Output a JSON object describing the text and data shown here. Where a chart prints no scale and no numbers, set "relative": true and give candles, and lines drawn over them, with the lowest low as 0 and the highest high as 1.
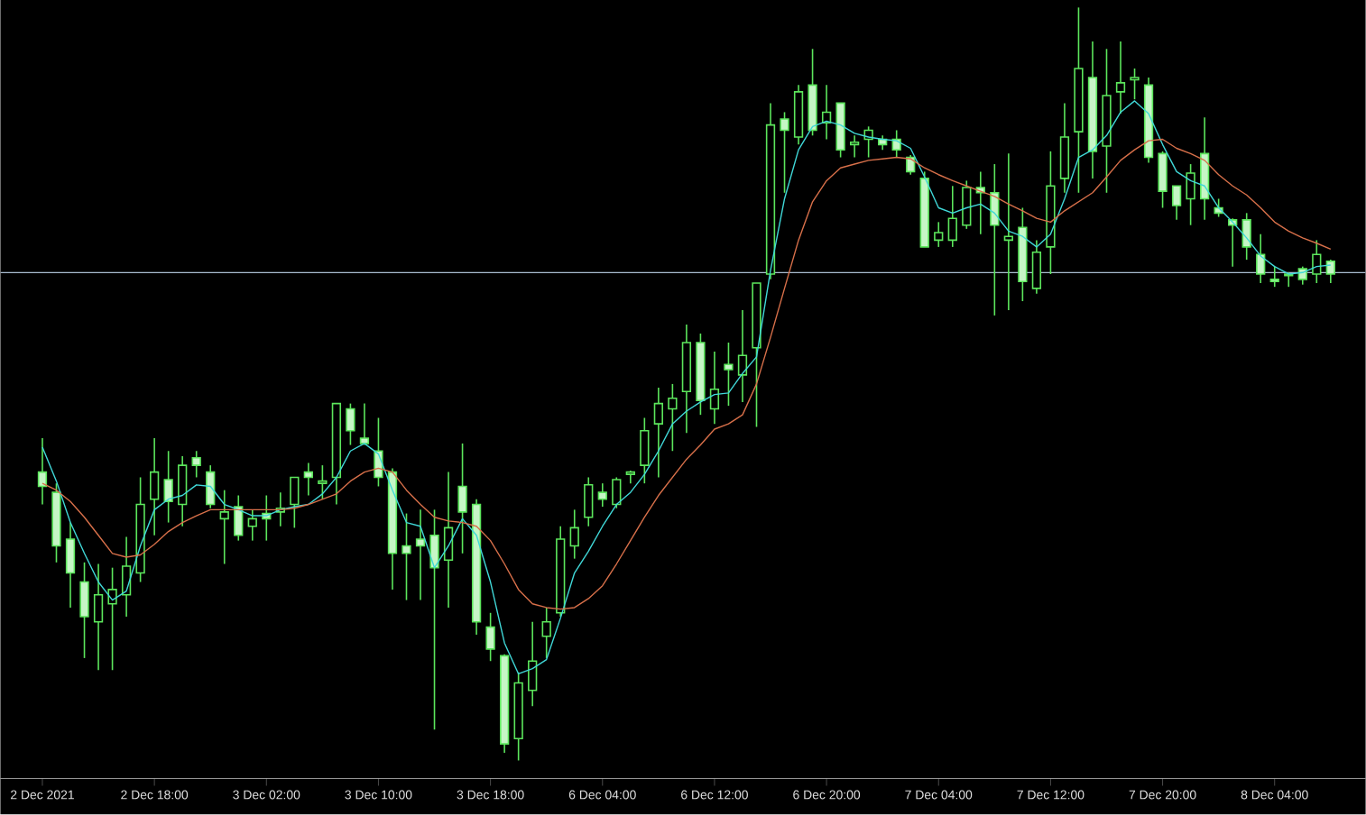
{
  "chart_data": {
    "type": "candlestick",
    "relative": true,
    "color": "#5ce65c",
    "categories": [
      "2 Dec 2021",
      null,
      null,
      null,
      null,
      null,
      null,
      null,
      "2 Dec 18:00",
      null,
      null,
      null,
      null,
      null,
      null,
      null,
      "3 Dec 02:00",
      null,
      null,
      null,
      null,
      null,
      null,
      null,
      "3 Dec 10:00",
      null,
      null,
      null,
      null,
      null,
      null,
      null,
      "3 Dec 18:00",
      null,
      null,
      null,
      null,
      null,
      null,
      null,
      "6 Dec 04:00",
      null,
      null,
      null,
      null,
      null,
      null,
      null,
      "6 Dec 12:00",
      null,
      null,
      null,
      null,
      null,
      null,
      null,
      "6 Dec 20:00",
      null,
      null,
      null,
      null,
      null,
      null,
      null,
      "7 Dec 04:00",
      null,
      null,
      null,
      null,
      null,
      null,
      null,
      "7 Dec 12:00",
      null,
      null,
      null,
      null,
      null,
      null,
      null,
      "7 Dec 20:00",
      null,
      null,
      null,
      null,
      null,
      null,
      null,
      "8 Dec 04:00",
      null,
      null,
      null,
      null
    ],
    "ohlc": [
      [
        0.383,
        0.428,
        0.34,
        0.364
      ],
      [
        0.356,
        0.368,
        0.263,
        0.285
      ],
      [
        0.294,
        0.316,
        0.203,
        0.249
      ],
      [
        0.237,
        0.263,
        0.136,
        0.191
      ],
      [
        0.184,
        0.261,
        0.12,
        0.22
      ],
      [
        0.208,
        0.256,
        0.12,
        0.227
      ],
      [
        0.22,
        0.297,
        0.191,
        0.258
      ],
      [
        0.249,
        0.376,
        0.237,
        0.34
      ],
      [
        0.347,
        0.428,
        0.299,
        0.383
      ],
      [
        0.373,
        0.411,
        0.316,
        0.344
      ],
      [
        0.34,
        0.404,
        0.311,
        0.392
      ],
      [
        0.402,
        0.411,
        0.376,
        0.392
      ],
      [
        0.383,
        0.392,
        0.335,
        0.34
      ],
      [
        0.321,
        0.359,
        0.261,
        0.33
      ],
      [
        0.337,
        0.352,
        0.292,
        0.299
      ],
      [
        0.311,
        0.333,
        0.292,
        0.321
      ],
      [
        0.328,
        0.352,
        0.292,
        0.321
      ],
      [
        0.33,
        0.356,
        0.311,
        0.335
      ],
      [
        0.34,
        0.376,
        0.309,
        0.376
      ],
      [
        0.383,
        0.395,
        0.352,
        0.376
      ],
      [
        0.368,
        0.392,
        0.347,
        0.371
      ],
      [
        0.376,
        0.474,
        0.34,
        0.474
      ],
      [
        0.467,
        0.474,
        0.419,
        0.438
      ],
      [
        0.428,
        0.474,
        0.419,
        0.421
      ],
      [
        0.411,
        0.455,
        0.364,
        0.376
      ],
      [
        0.383,
        0.388,
        0.227,
        0.275
      ],
      [
        0.285,
        0.328,
        0.213,
        0.275
      ],
      [
        0.294,
        0.333,
        0.213,
        0.285
      ],
      [
        0.299,
        0.333,
        0.041,
        0.256
      ],
      [
        0.266,
        0.383,
        0.203,
        0.309
      ],
      [
        0.364,
        0.421,
        0.275,
        0.33
      ],
      [
        0.34,
        0.347,
        0.167,
        0.184
      ],
      [
        0.177,
        0.196,
        0.132,
        0.148
      ],
      [
        0.139,
        0.141,
        0.01,
        0.022
      ],
      [
        0.029,
        0.117,
        0,
        0.103
      ],
      [
        0.093,
        0.184,
        0.072,
        0.132
      ],
      [
        0.165,
        0.203,
        0.136,
        0.184
      ],
      [
        0.196,
        0.311,
        0.191,
        0.294
      ],
      [
        0.285,
        0.333,
        0.268,
        0.309
      ],
      [
        0.323,
        0.376,
        0.311,
        0.366
      ],
      [
        0.356,
        0.368,
        0.337,
        0.347
      ],
      [
        0.34,
        0.376,
        0.335,
        0.373
      ],
      [
        0.38,
        0.385,
        0.368,
        0.383
      ],
      [
        0.392,
        0.455,
        0.368,
        0.438
      ],
      [
        0.447,
        0.495,
        0.376,
        0.474
      ],
      [
        0.467,
        0.5,
        0.411,
        0.481
      ],
      [
        0.49,
        0.579,
        0.435,
        0.555
      ],
      [
        0.555,
        0.567,
        0.459,
        0.478
      ],
      [
        0.467,
        0.543,
        0.447,
        0.493
      ],
      [
        0.526,
        0.555,
        0.471,
        0.519
      ],
      [
        0.512,
        0.598,
        0.476,
        0.538
      ],
      [
        0.548,
        0.634,
        0.443,
        0.634
      ],
      [
        0.646,
        0.873,
        0.639,
        0.844
      ],
      [
        0.852,
        0.861,
        0.754,
        0.837
      ],
      [
        0.828,
        0.897,
        0.818,
        0.888
      ],
      [
        0.897,
        0.945,
        0.83,
        0.837
      ],
      [
        0.847,
        0.897,
        0.825,
        0.861
      ],
      [
        0.873,
        0.873,
        0.801,
        0.811
      ],
      [
        0.818,
        0.83,
        0.801,
        0.821
      ],
      [
        0.825,
        0.842,
        0.801,
        0.837
      ],
      [
        0.825,
        0.83,
        0.811,
        0.818
      ],
      [
        0.825,
        0.837,
        0.801,
        0.811
      ],
      [
        0.801,
        0.804,
        0.778,
        0.782
      ],
      [
        0.773,
        0.782,
        0.682,
        0.682
      ],
      [
        0.691,
        0.715,
        0.682,
        0.701
      ],
      [
        0.691,
        0.763,
        0.682,
        0.72
      ],
      [
        0.711,
        0.77,
        0.706,
        0.761
      ],
      [
        0.761,
        0.782,
        0.699,
        0.754
      ],
      [
        0.754,
        0.792,
        0.591,
        0.711
      ],
      [
        0.691,
        0.806,
        0.598,
        0.696
      ],
      [
        0.708,
        0.734,
        0.61,
        0.636
      ],
      [
        0.627,
        0.691,
        0.62,
        0.675
      ],
      [
        0.682,
        0.809,
        0.646,
        0.763
      ],
      [
        0.773,
        0.873,
        0.754,
        0.828
      ],
      [
        0.835,
        1,
        0.754,
        0.919
      ],
      [
        0.907,
        0.955,
        0.773,
        0.809
      ],
      [
        0.816,
        0.945,
        0.754,
        0.883
      ],
      [
        0.888,
        0.955,
        0.859,
        0.9
      ],
      [
        0.904,
        0.919,
        0.878,
        0.907
      ],
      [
        0.897,
        0.907,
        0.794,
        0.801
      ],
      [
        0.806,
        0.809,
        0.734,
        0.756
      ],
      [
        0.763,
        0.763,
        0.718,
        0.737
      ],
      [
        0.746,
        0.792,
        0.711,
        0.78
      ],
      [
        0.806,
        0.854,
        0.718,
        0.746
      ],
      [
        0.734,
        0.746,
        0.722,
        0.727
      ],
      [
        0.718,
        0.72,
        0.656,
        0.711
      ],
      [
        0.718,
        0.727,
        0.665,
        0.682
      ],
      [
        0.672,
        0.699,
        0.634,
        0.646
      ],
      [
        0.639,
        0.656,
        0.629,
        0.636
      ],
      [
        0.646,
        0.648,
        0.629,
        0.644
      ],
      [
        0.653,
        0.656,
        0.632,
        0.639
      ],
      [
        0.646,
        0.691,
        0.634,
        0.672
      ],
      [
        0.663,
        0.665,
        0.634,
        0.646
      ]
    ],
    "series": [
      {
        "type": "line",
        "color": "#40d8d8",
        "values": [
          0.416,
          0.371,
          0.316,
          0.275,
          0.237,
          0.213,
          0.225,
          0.285,
          0.333,
          0.347,
          0.352,
          0.366,
          0.364,
          0.34,
          0.333,
          0.325,
          0.325,
          0.333,
          0.337,
          0.34,
          0.354,
          0.376,
          0.411,
          0.421,
          0.407,
          0.359,
          0.316,
          0.311,
          0.256,
          0.285,
          0.321,
          0.299,
          0.237,
          0.156,
          0.115,
          0.122,
          0.134,
          0.189,
          0.249,
          0.278,
          0.311,
          0.34,
          0.356,
          0.38,
          0.411,
          0.447,
          0.464,
          0.476,
          0.486,
          0.488,
          0.514,
          0.536,
          0.651,
          0.746,
          0.811,
          0.842,
          0.849,
          0.844,
          0.833,
          0.828,
          0.825,
          0.823,
          0.813,
          0.775,
          0.734,
          0.727,
          0.734,
          0.739,
          0.727,
          0.703,
          0.696,
          0.682,
          0.699,
          0.746,
          0.801,
          0.811,
          0.83,
          0.861,
          0.876,
          0.859,
          0.818,
          0.782,
          0.77,
          0.763,
          0.734,
          0.715,
          0.694,
          0.67,
          0.656,
          0.646,
          0.648,
          0.656,
          0.658
        ]
      },
      {
        "type": "line",
        "color": "#d8704a",
        "values": [
          0.368,
          0.359,
          0.344,
          0.323,
          0.299,
          0.275,
          0.27,
          0.273,
          0.287,
          0.304,
          0.316,
          0.325,
          0.333,
          0.333,
          0.333,
          0.333,
          0.333,
          0.333,
          0.335,
          0.34,
          0.347,
          0.354,
          0.371,
          0.383,
          0.388,
          0.383,
          0.359,
          0.34,
          0.323,
          0.318,
          0.316,
          0.311,
          0.292,
          0.261,
          0.227,
          0.208,
          0.203,
          0.201,
          0.203,
          0.215,
          0.232,
          0.261,
          0.292,
          0.323,
          0.352,
          0.376,
          0.4,
          0.419,
          0.44,
          0.447,
          0.459,
          0.5,
          0.562,
          0.627,
          0.691,
          0.742,
          0.77,
          0.787,
          0.792,
          0.797,
          0.799,
          0.801,
          0.799,
          0.787,
          0.778,
          0.77,
          0.763,
          0.756,
          0.749,
          0.739,
          0.73,
          0.72,
          0.715,
          0.73,
          0.742,
          0.754,
          0.775,
          0.797,
          0.811,
          0.823,
          0.825,
          0.813,
          0.806,
          0.797,
          0.778,
          0.763,
          0.751,
          0.734,
          0.715,
          0.703,
          0.694,
          0.687,
          0.679
        ]
      }
    ],
    "ref_lines": [
      {
        "axis": "y",
        "value": 0.648,
        "color": "#a9bcd0"
      }
    ]
  }
}
